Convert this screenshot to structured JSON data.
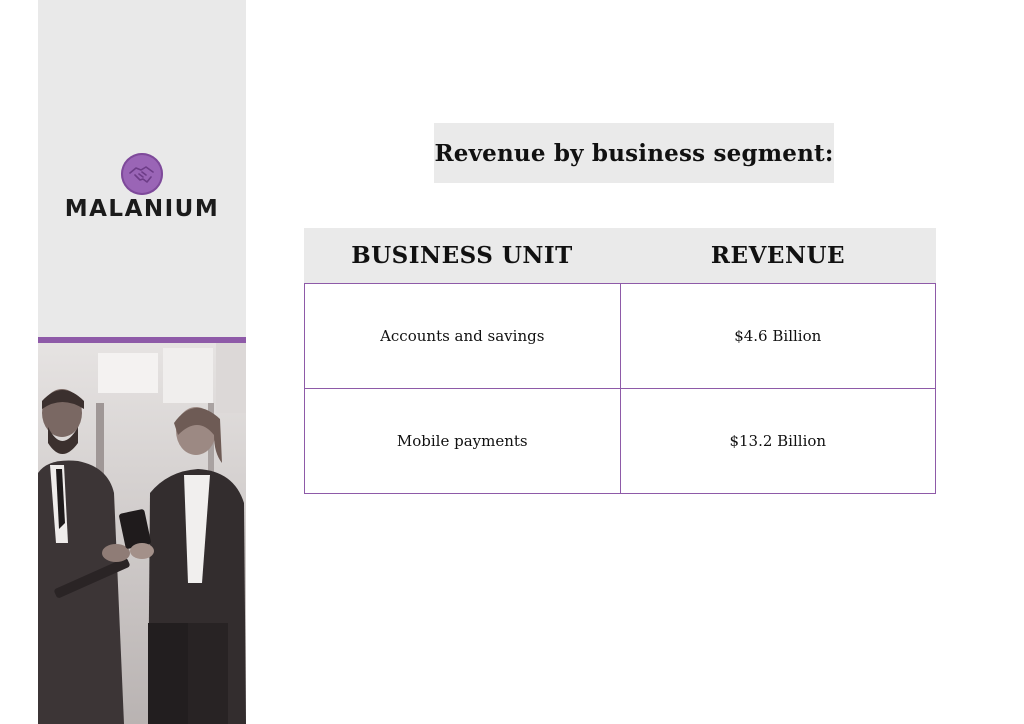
{
  "brand": {
    "name": "MALANIUM",
    "logo_icon": "handshake-icon",
    "accent_color": "#8e5aa8"
  },
  "title": "Revenue by business segment:",
  "table": {
    "headers": [
      "BUSINESS UNIT",
      "REVENUE"
    ],
    "rows": [
      [
        "Accounts and savings",
        "$4.6 Billion"
      ],
      [
        "Mobile payments",
        "$13.2 Billion"
      ]
    ]
  }
}
